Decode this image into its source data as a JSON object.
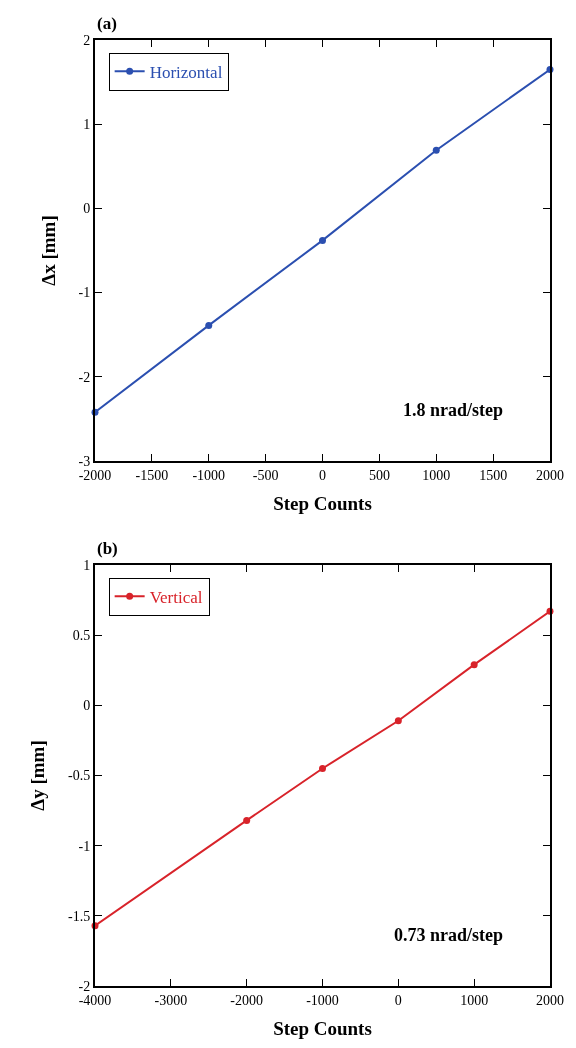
{
  "chart_data": [
    {
      "type": "line",
      "xlabel": "Step Counts",
      "ylabel": "Δx [mm]",
      "annotations": [
        "(a)",
        "1.8 nrad/step"
      ],
      "x": [
        -2000,
        -1000,
        0,
        1000,
        2000
      ],
      "series": [
        {
          "name": "Horizontal",
          "color": "#2b4fb0",
          "values": [
            -2.42,
            -1.39,
            -0.38,
            0.69,
            1.65
          ]
        }
      ],
      "xlim": [
        -2000,
        2000
      ],
      "xticks": [
        -2000,
        -1500,
        -1000,
        -500,
        0,
        500,
        1000,
        1500,
        2000
      ],
      "ylim": [
        -3,
        2
      ],
      "yticks": [
        -3,
        -2,
        -1,
        0,
        1,
        2
      ],
      "legend": "top left",
      "marker": "circle",
      "line_style": "solid"
    },
    {
      "type": "line",
      "xlabel": "Step Counts",
      "ylabel": "Δy [mm]",
      "annotations": [
        "(b)",
        "0.73 nrad/step"
      ],
      "x": [
        -4000,
        -2000,
        -1000,
        0,
        1000,
        2000
      ],
      "series": [
        {
          "name": "Vertical",
          "color": "#d8232a",
          "values": [
            -1.57,
            -0.82,
            -0.45,
            -0.11,
            0.29,
            0.67
          ]
        }
      ],
      "xlim": [
        -4000,
        2000
      ],
      "xticks": [
        -4000,
        -3000,
        -2000,
        -1000,
        0,
        1000,
        2000
      ],
      "ylim": [
        -2,
        1
      ],
      "yticks": [
        -2,
        -1.5,
        -1,
        -0.5,
        0,
        0.5,
        1
      ],
      "legend": "top left",
      "marker": "circle",
      "line_style": "solid"
    }
  ]
}
